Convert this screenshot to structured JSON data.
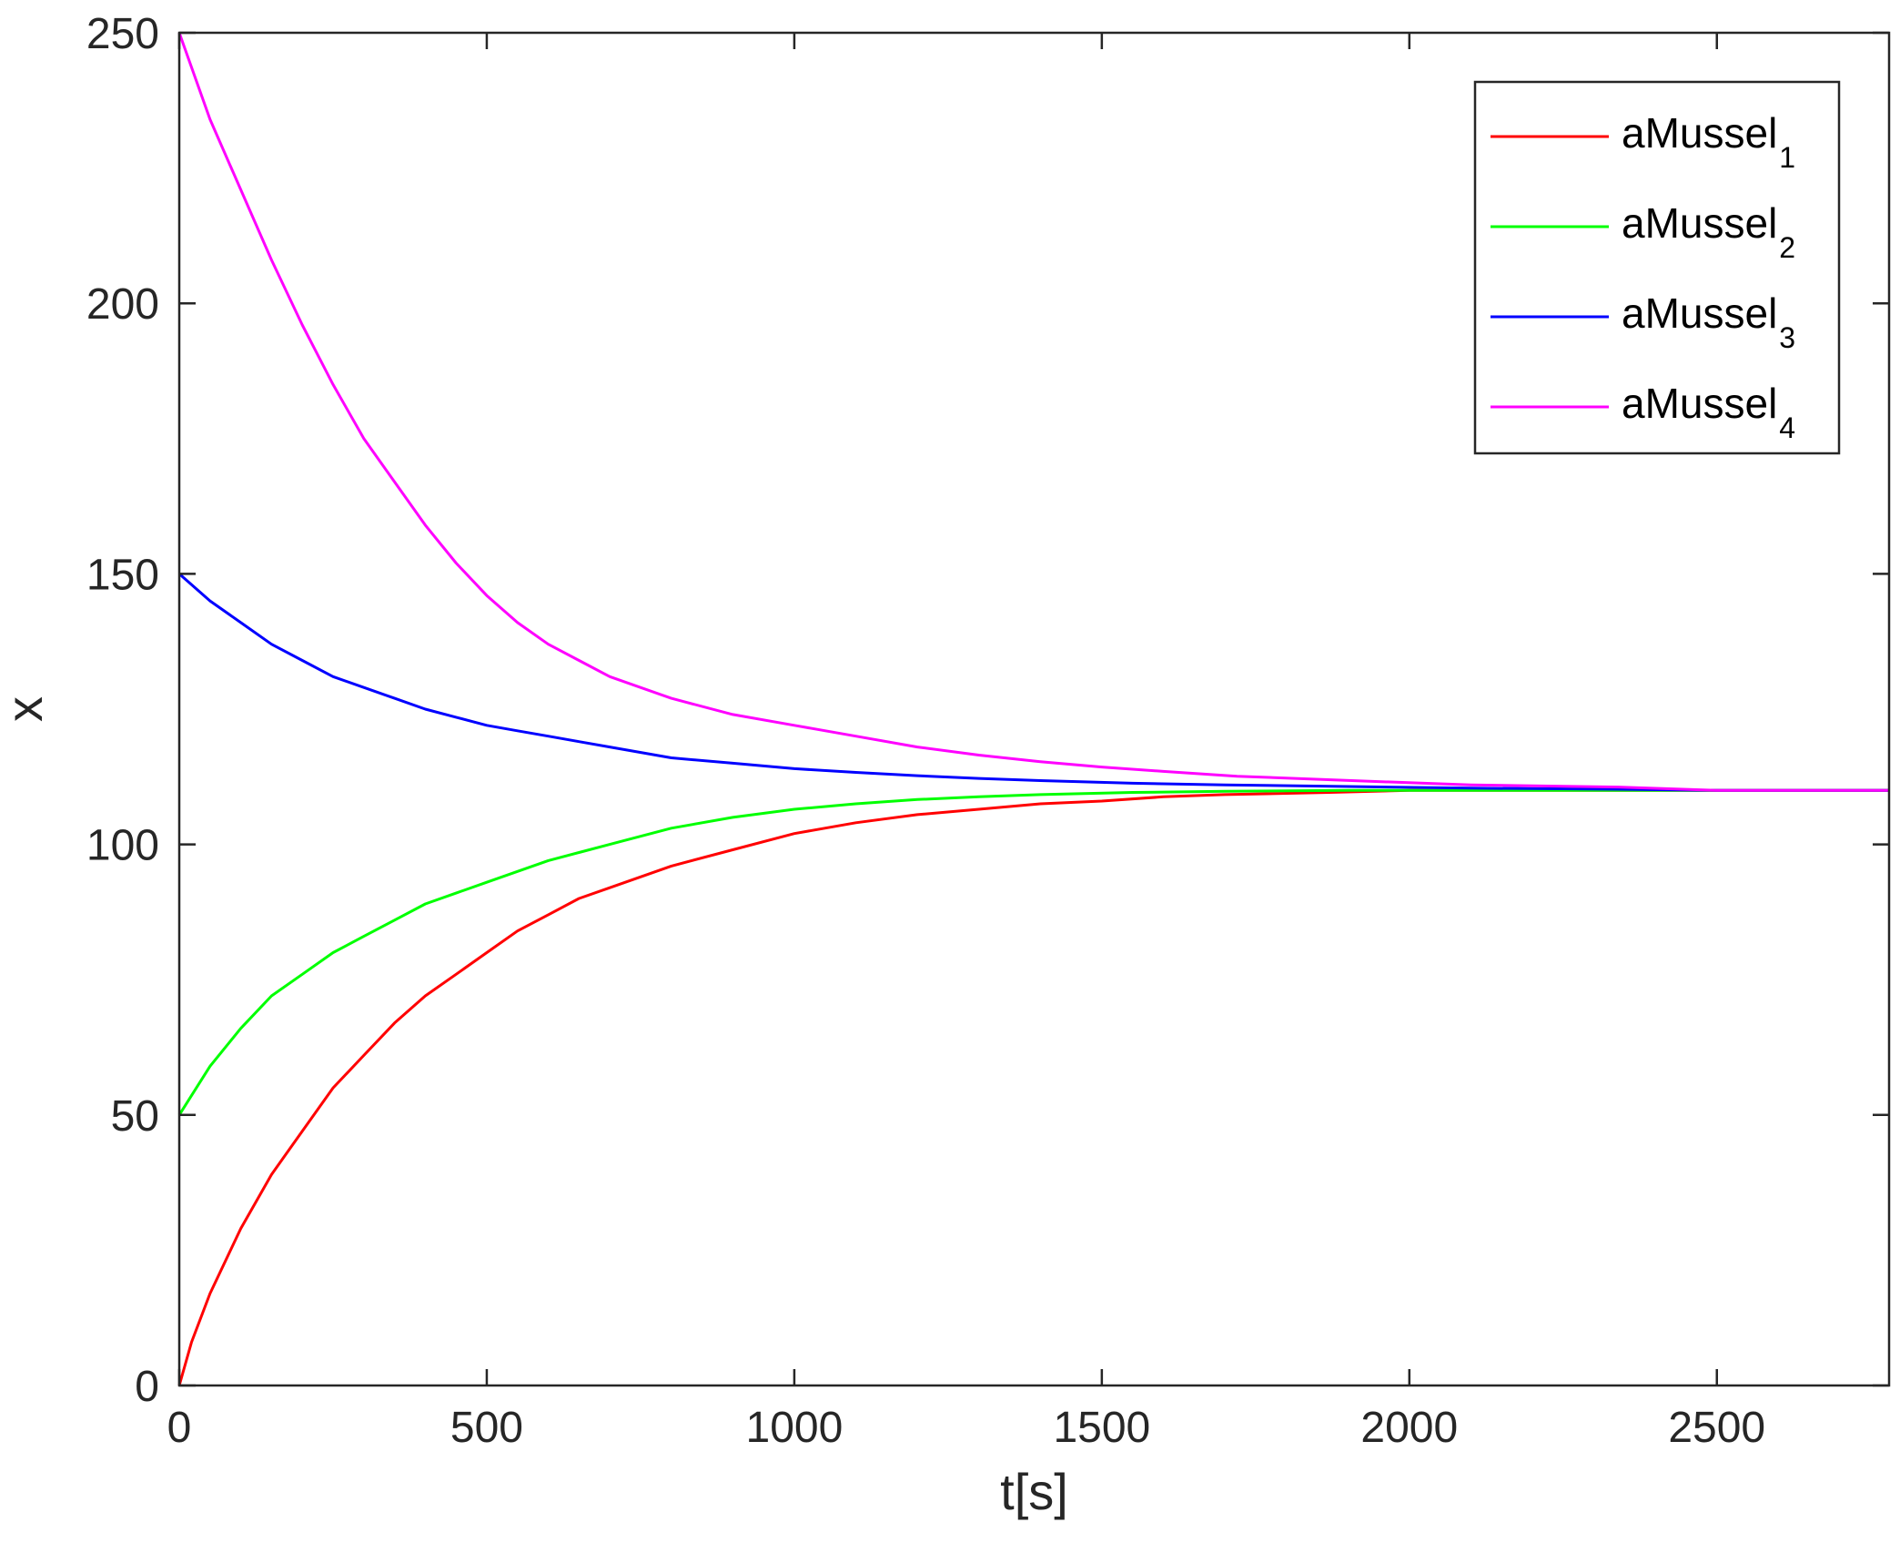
{
  "chart_data": {
    "type": "line",
    "title": "",
    "xlabel": "t[s]",
    "ylabel": "x",
    "xlim": [
      0,
      2780
    ],
    "ylim": [
      0,
      250
    ],
    "xticks": [
      0,
      500,
      1000,
      1500,
      2000,
      2500
    ],
    "yticks": [
      0,
      50,
      100,
      150,
      200,
      250
    ],
    "grid": false,
    "legend_position": "top-right",
    "series": [
      {
        "name": "aMussel",
        "subscript": "1",
        "color": "#ff0000",
        "x": [
          0,
          20,
          50,
          100,
          150,
          200,
          250,
          300,
          350,
          400,
          450,
          500,
          550,
          600,
          650,
          700,
          800,
          900,
          1000,
          1100,
          1200,
          1300,
          1400,
          1500,
          1600,
          1700,
          1870,
          2000,
          2200,
          2500,
          2780
        ],
        "y": [
          0,
          8,
          17,
          29,
          39,
          47,
          55,
          61,
          67,
          72,
          76,
          80,
          84,
          87,
          90,
          92,
          96,
          99,
          102,
          104,
          105.5,
          106.5,
          107.5,
          108,
          108.8,
          109.2,
          109.6,
          110,
          110,
          110,
          110
        ]
      },
      {
        "name": "aMussel",
        "subscript": "2",
        "color": "#00ff00",
        "x": [
          0,
          50,
          100,
          150,
          200,
          250,
          300,
          350,
          400,
          450,
          500,
          550,
          600,
          650,
          700,
          800,
          900,
          1000,
          1100,
          1200,
          1300,
          1400,
          1550,
          1700,
          1900,
          2100,
          2300,
          2500,
          2780
        ],
        "y": [
          50,
          59,
          66,
          72,
          76,
          80,
          83,
          86,
          89,
          91,
          93,
          95,
          97,
          98.5,
          100,
          103,
          105,
          106.5,
          107.5,
          108.3,
          108.8,
          109.2,
          109.6,
          109.8,
          110,
          110,
          110,
          110,
          110
        ]
      },
      {
        "name": "aMussel",
        "subscript": "3",
        "color": "#0000ff",
        "x": [
          0,
          50,
          100,
          150,
          200,
          250,
          300,
          350,
          400,
          450,
          500,
          550,
          600,
          650,
          700,
          800,
          900,
          1000,
          1100,
          1200,
          1300,
          1400,
          1550,
          1700,
          1900,
          2100,
          2340,
          2500,
          2780
        ],
        "y": [
          150,
          145,
          141,
          137,
          134,
          131,
          129,
          127,
          125,
          123.5,
          122,
          121,
          120,
          119,
          118,
          116,
          115,
          114,
          113.3,
          112.7,
          112.2,
          111.8,
          111.3,
          111,
          110.7,
          110.4,
          110.2,
          110,
          110
        ]
      },
      {
        "name": "aMussel",
        "subscript": "4",
        "color": "#ff00ff",
        "x": [
          0,
          50,
          100,
          150,
          200,
          250,
          300,
          350,
          400,
          450,
          500,
          550,
          600,
          650,
          700,
          800,
          900,
          1000,
          1100,
          1200,
          1300,
          1400,
          1500,
          1600,
          1720,
          1950,
          2100,
          2340,
          2500,
          2780
        ],
        "y": [
          250,
          234,
          221,
          208,
          196,
          185,
          175,
          167,
          159,
          152,
          146,
          141,
          137,
          134,
          131,
          127,
          124,
          122,
          120,
          118,
          116.5,
          115.3,
          114.3,
          113.5,
          112.6,
          111.6,
          111,
          110.6,
          110,
          110
        ]
      }
    ]
  }
}
